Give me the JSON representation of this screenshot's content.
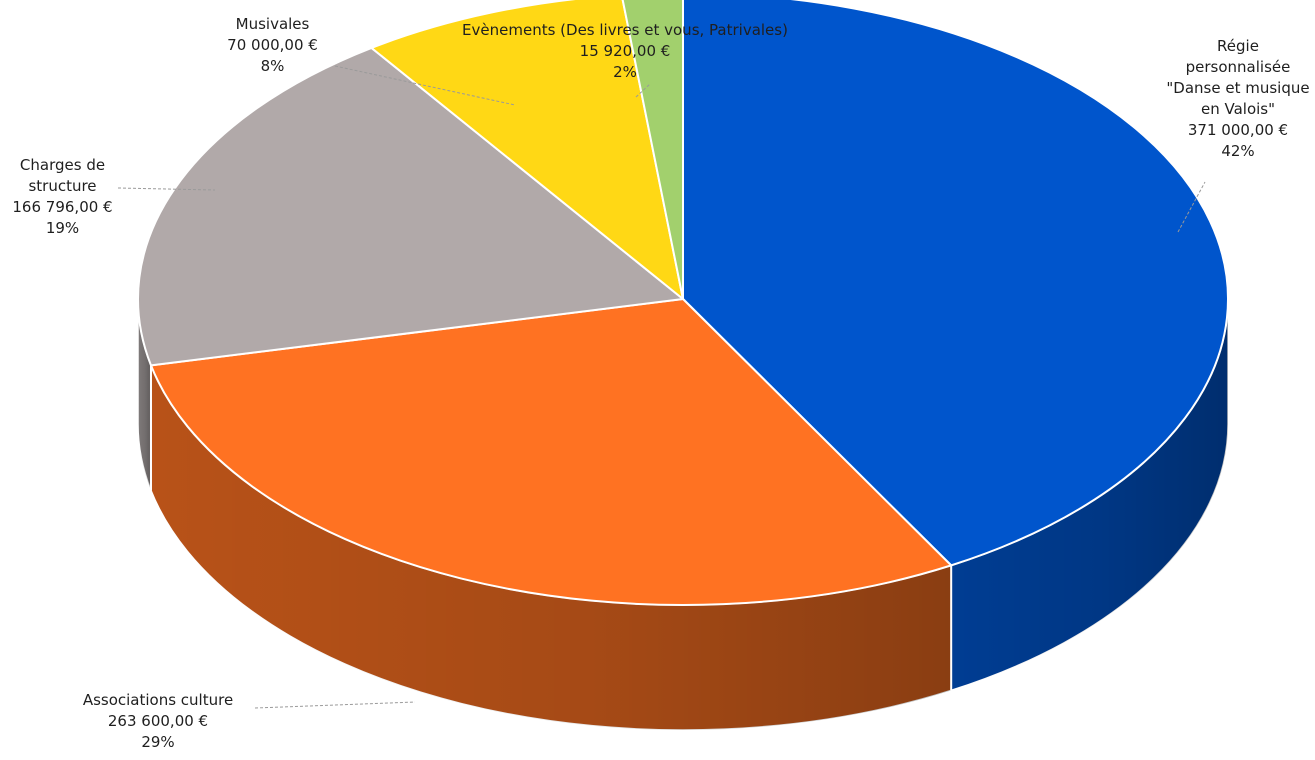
{
  "chart_data": {
    "type": "pie",
    "style": "3d",
    "currency": "€",
    "slices": [
      {
        "label": "Régie personnalisée \"Danse et musique en Valois\"",
        "value_text": "371 000,00 €",
        "percent_text": "42%",
        "value": 371000,
        "color": "#0055CC"
      },
      {
        "label": "Associations culture",
        "value_text": "263 600,00 €",
        "percent_text": "29%",
        "value": 263600,
        "color": "#FF7222"
      },
      {
        "label": "Charges de structure",
        "value_text": "166 796,00 €",
        "percent_text": "19%",
        "value": 166796,
        "color": "#B1A9A9"
      },
      {
        "label": "Musivales",
        "value_text": "70 000,00 €",
        "percent_text": "8%",
        "value": 70000,
        "color": "#FFD815"
      },
      {
        "label": "Evènements (Des livres et vous, Patrivales)",
        "value_text": "15 920,00 €",
        "percent_text": "2%",
        "value": 15920,
        "color": "#A2D06D"
      }
    ]
  }
}
